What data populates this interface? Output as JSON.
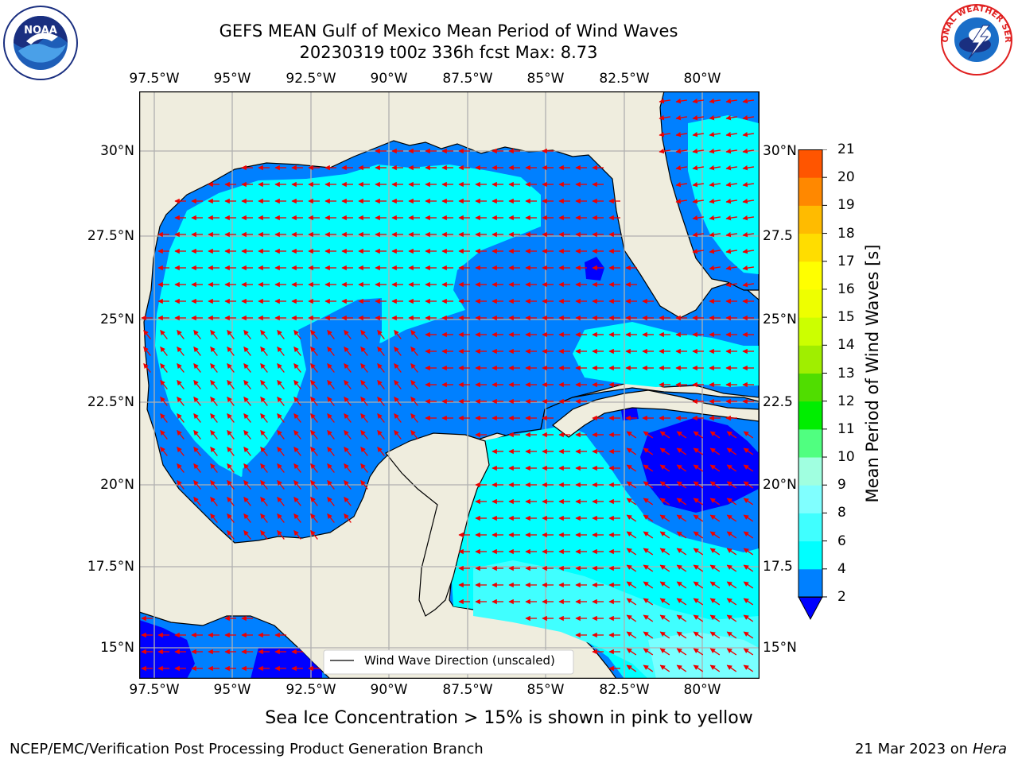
{
  "title_line1": "GEFS MEAN Gulf of Mexico Mean Period of Wind Waves",
  "title_line2": "20230319 t00z 336h fcst   Max: 8.73",
  "lon_labels": [
    "97.5°W",
    "95°W",
    "92.5°W",
    "90°W",
    "87.5°W",
    "85°W",
    "82.5°W",
    "80°W"
  ],
  "lat_labels_left": [
    "30°N",
    "27.5°N",
    "25°N",
    "22.5°N",
    "20°N",
    "17.5°N",
    "15°N"
  ],
  "lat_labels_right": [
    "30°N",
    "27.5",
    "25°N",
    "22.5",
    "20°N",
    "17.5",
    "15°N"
  ],
  "legend_text": "Wind Wave Direction (unscaled)",
  "colorbar": {
    "label": "Mean Period of Wind Waves [s]",
    "ticks": [
      "2",
      "4",
      "6",
      "8",
      "9",
      "10",
      "11",
      "12",
      "13",
      "14",
      "15",
      "16",
      "17",
      "18",
      "19",
      "20",
      "21"
    ],
    "colors": [
      "#0080ff",
      "#00ffff",
      "#40ffff",
      "#80ffff",
      "#a0ffe0",
      "#50ff80",
      "#00ee00",
      "#50dd00",
      "#a0ee00",
      "#ccff00",
      "#eeff00",
      "#ffff00",
      "#ffdd00",
      "#ffbb00",
      "#ff8800",
      "#ff5500",
      "#ff2200",
      "#ff0000"
    ],
    "under_color": "#0000ff"
  },
  "colors": {
    "land": "#efedde",
    "arrow": "#ee0000",
    "grid": "#b0b0b0"
  },
  "footer_note": "Sea Ice Concentration > 15% is shown in pink to yellow",
  "credit": "NCEP/EMC/Verification Post Processing Product Generation Branch",
  "run_date": "21 Mar 2023 on",
  "run_host": "Hera",
  "logos": {
    "left": "NOAA",
    "right": "NATIONAL WEATHER SERVICE"
  }
}
